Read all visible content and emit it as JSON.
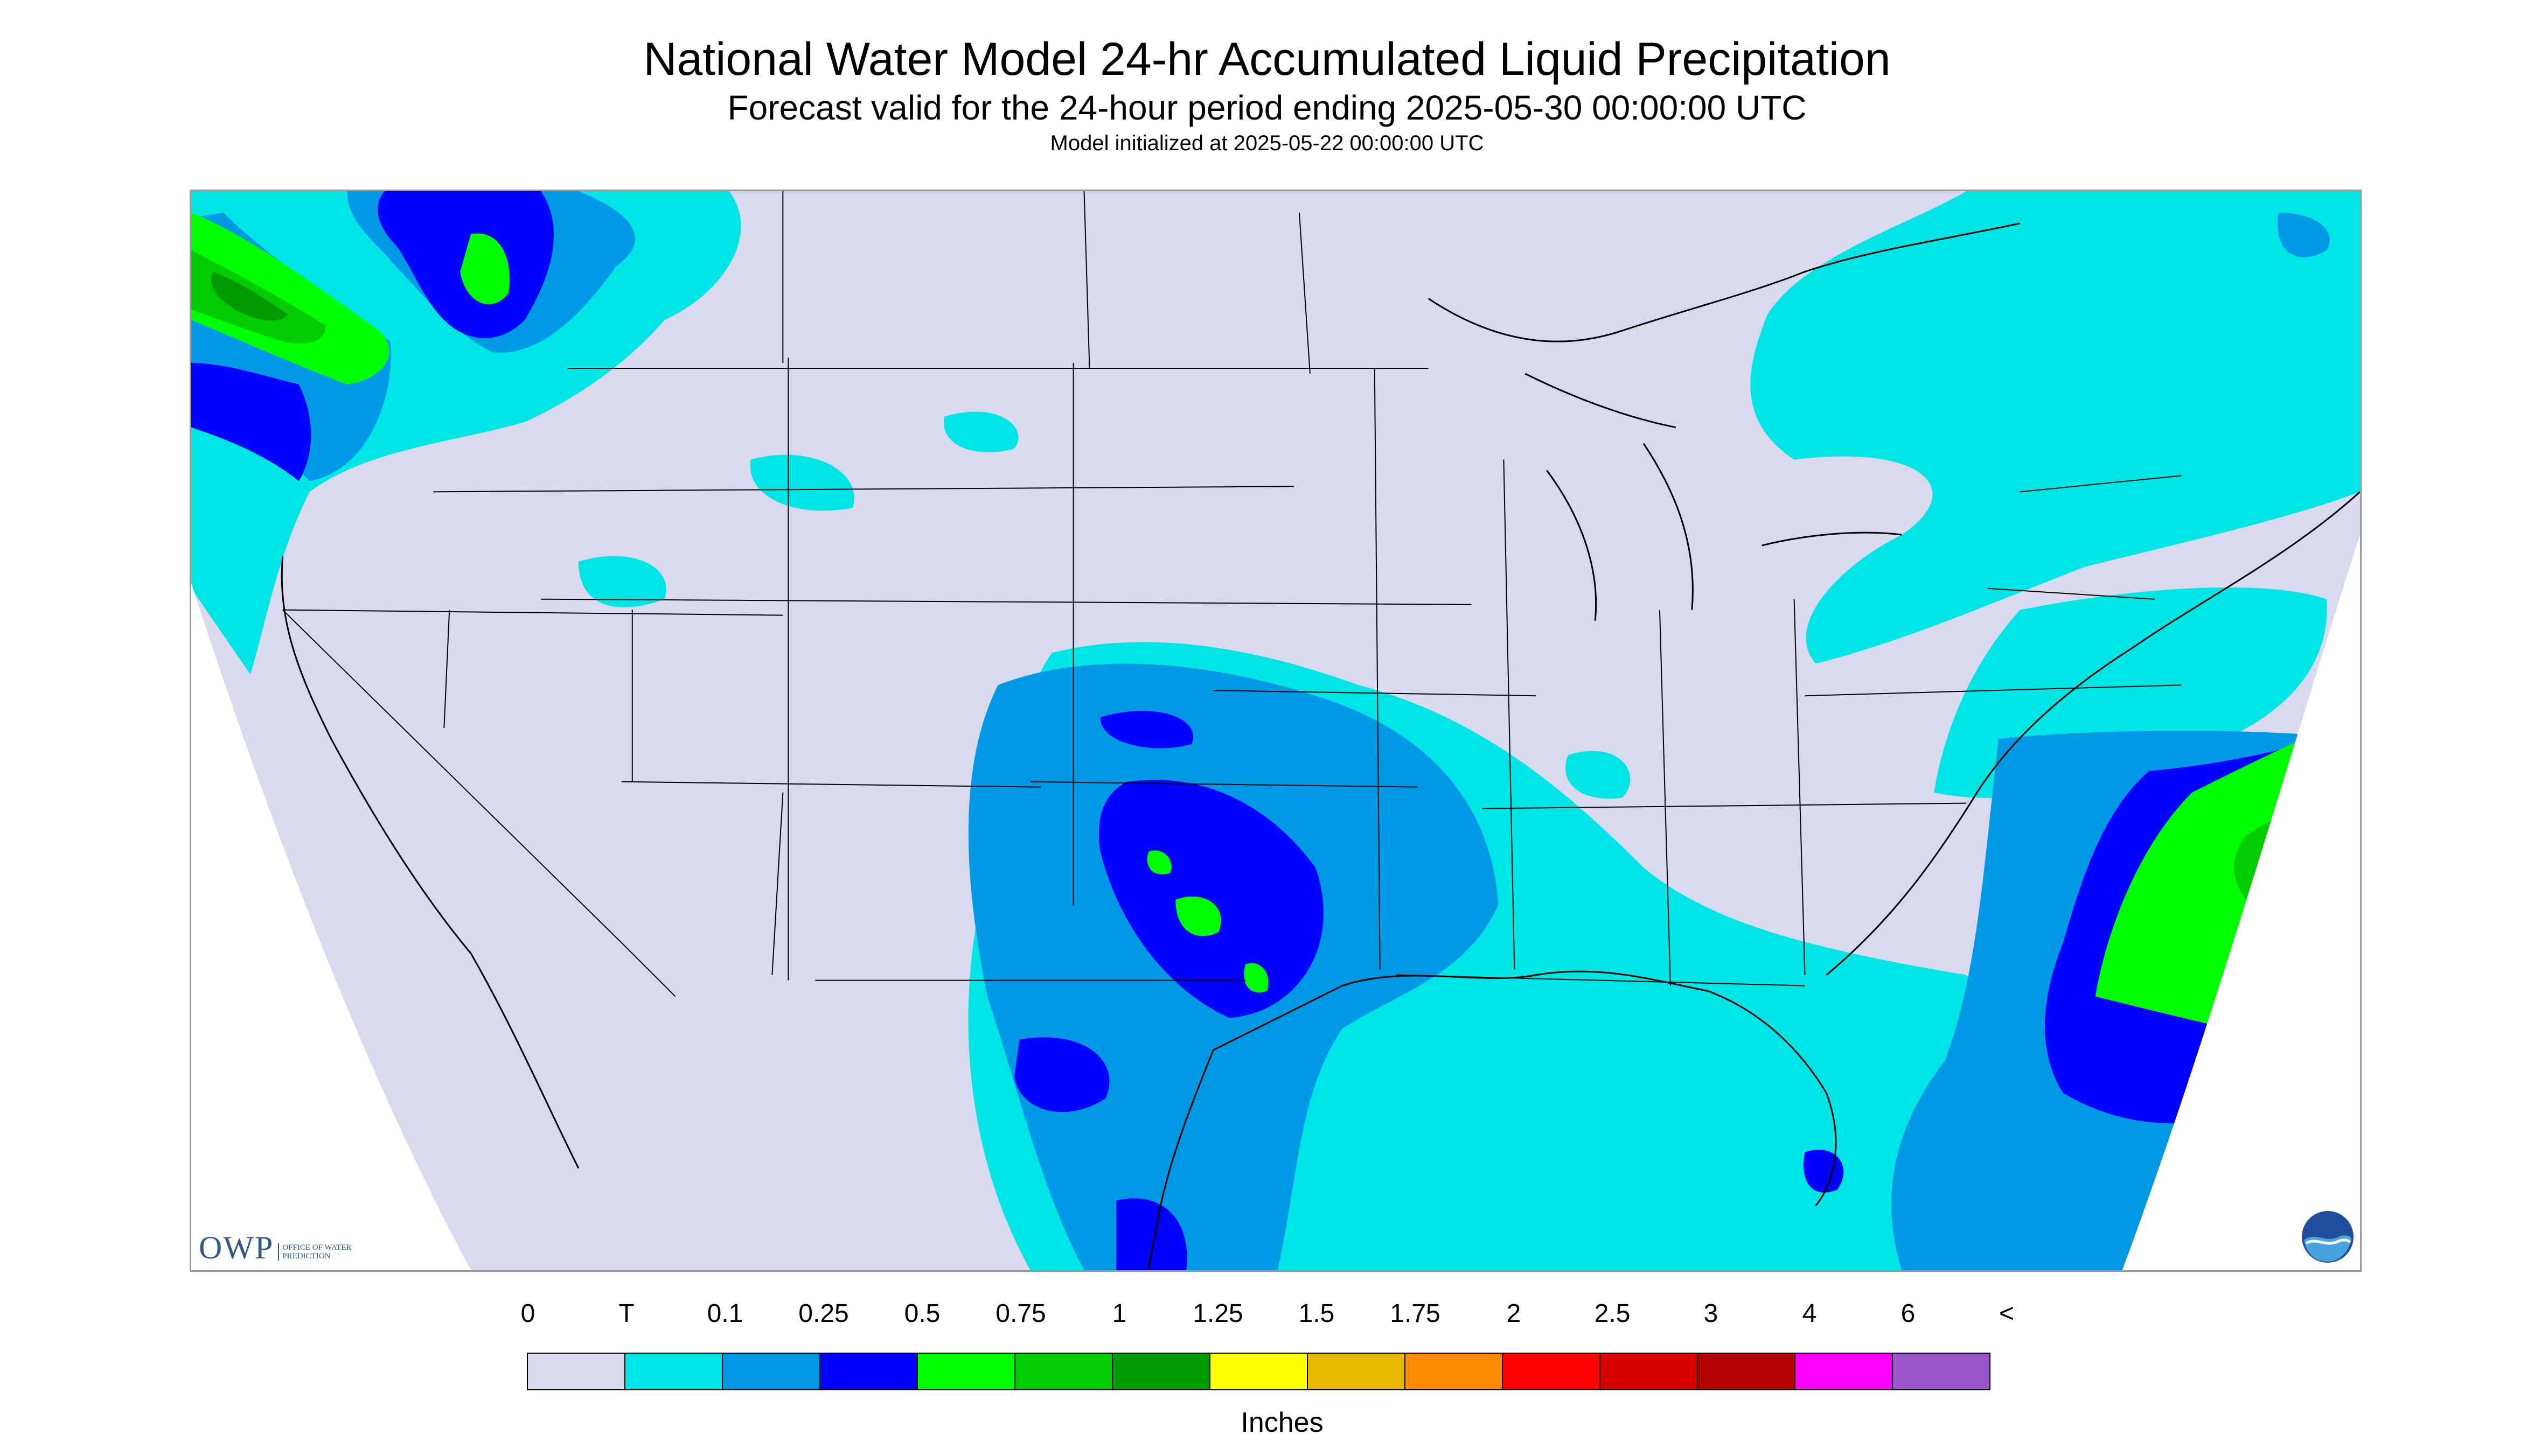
{
  "title": "National Water Model 24-hr Accumulated Liquid Precipitation",
  "subtitle": "Forecast valid for the 24-hour period ending 2025-05-30 00:00:00 UTC",
  "init_line": "Model initialized at 2025-05-22 00:00:00 UTC",
  "logos": {
    "owp_mark": "OWP",
    "owp_text": "OFFICE OF WATER PREDICTION",
    "noaa_mark": "NOAA"
  },
  "legend": {
    "units": "Inches",
    "tick_labels": [
      "0",
      "T",
      "0.1",
      "0.25",
      "0.5",
      "0.75",
      "1",
      "1.25",
      "1.5",
      "1.75",
      "2",
      "2.5",
      "3",
      "4",
      "6",
      "<"
    ],
    "colors": [
      "#d9d9ef",
      "#00e6e6",
      "#0099e6",
      "#0000ff",
      "#00ff00",
      "#00cc00",
      "#009900",
      "#ffff00",
      "#e6b800",
      "#ff8c00",
      "#ff0000",
      "#d90000",
      "#b30000",
      "#ff00ff",
      "#9955cc"
    ]
  },
  "colors": {
    "no_data": "#ffffff",
    "zero": "#d9d9ef",
    "trace": "#00e6e6",
    "p10": "#0099e6",
    "p25": "#0000ff",
    "p50": "#00ff00",
    "p75": "#00cc00",
    "p100": "#009900",
    "boundary": "#000000"
  }
}
